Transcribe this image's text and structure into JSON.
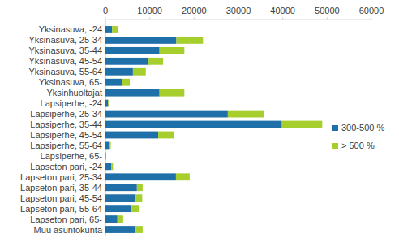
{
  "chart_data": {
    "type": "bar",
    "orientation": "horizontal",
    "stacked": true,
    "legend": "right",
    "categories": [
      "Yksinasuva, -24",
      "Yksinasuva, 25-34",
      "Yksinasuva, 35-44",
      "Yksinasuva, 45-54",
      "Yksinasuva, 55-64",
      "Yksinasuva, 65-",
      "Yksinhuoltajat",
      "Lapsiperhe, -24",
      "Lapsiperhe, 25-34",
      "Lapsiperhe, 35-44",
      "Lapsiperhe, 45-54",
      "Lapsiperhe, 55-64",
      "Lapsiperhe, 65-",
      "Lapseton pari, -24",
      "Lapseton pari, 25-34",
      "Lapseton pari, 35-44",
      "Lapseton pari, 45-54",
      "Lapseton pari, 55-64",
      "Lapseton pari, 65-",
      "Muu asuntokunta"
    ],
    "series": [
      {
        "name": "300-500 %",
        "color": "#1f6fa8",
        "values": [
          1500,
          16000,
          12200,
          9700,
          6200,
          3800,
          12200,
          600,
          27600,
          39800,
          11900,
          800,
          100,
          1300,
          15900,
          7100,
          6800,
          5900,
          2700,
          6800
        ]
      },
      {
        "name": "> 500 %",
        "color": "#a6cf2e",
        "values": [
          1300,
          6000,
          5600,
          3300,
          2900,
          1700,
          5600,
          150,
          8200,
          9100,
          3500,
          400,
          50,
          400,
          3100,
          1300,
          1500,
          1800,
          1300,
          1600
        ]
      }
    ],
    "xlim": [
      0,
      60000
    ],
    "xticks": [
      0,
      10000,
      20000,
      30000,
      40000,
      50000,
      60000
    ]
  }
}
